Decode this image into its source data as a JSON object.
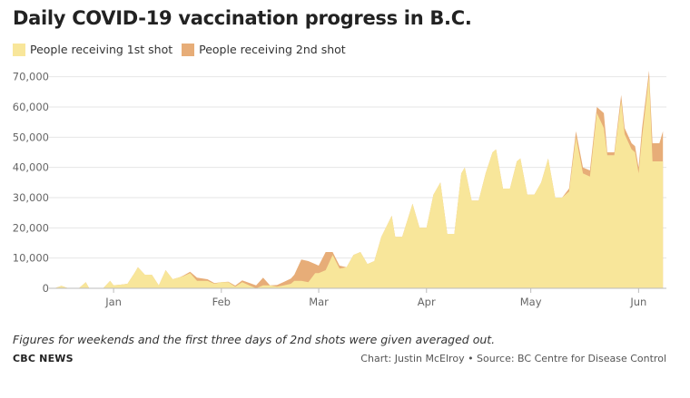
{
  "header": {
    "title": "Daily COVID-19 vaccination progress in B.C."
  },
  "legend": {
    "items": [
      {
        "label": "People receiving 1st shot",
        "color": "#f8e69a"
      },
      {
        "label": "People receiving 2nd shot",
        "color": "#e7ad78"
      }
    ]
  },
  "footer": {
    "note": "Figures for weekends and the first three days of 2nd shots were given averaged out.",
    "brand": "CBC NEWS",
    "credit": "Chart: Justin McElroy • Source: BC Centre for Disease Control"
  },
  "chart_data": {
    "type": "area",
    "stacked": true,
    "x_start": "2020-12-15",
    "x_end": "2021-06-01",
    "xticks": [
      {
        "label": "Jan",
        "date": "2021-01-01"
      },
      {
        "label": "Feb",
        "date": "2021-02-01"
      },
      {
        "label": "Mar",
        "date": "2021-03-01"
      },
      {
        "label": "Apr",
        "date": "2021-04-01"
      },
      {
        "label": "May",
        "date": "2021-05-01"
      },
      {
        "label": "Jun",
        "date": "2021-06-01"
      }
    ],
    "yticks": [
      "0",
      "10,000",
      "20,000",
      "30,000",
      "40,000",
      "50,000",
      "60,000",
      "70,000"
    ],
    "ylim": [
      0,
      72000
    ],
    "grid": true,
    "legend_position": "top-left",
    "series": [
      {
        "name": "People receiving 1st shot",
        "color": "#f8e69a",
        "points": [
          [
            "2020-12-15",
            0
          ],
          [
            "2020-12-17",
            800
          ],
          [
            "2020-12-19",
            0
          ],
          [
            "2020-12-22",
            0
          ],
          [
            "2020-12-24",
            2000
          ],
          [
            "2020-12-25",
            0
          ],
          [
            "2020-12-29",
            0
          ],
          [
            "2020-12-31",
            2500
          ],
          [
            "2021-01-01",
            1000
          ],
          [
            "2021-01-03",
            1200
          ],
          [
            "2021-01-05",
            1500
          ],
          [
            "2021-01-07",
            5000
          ],
          [
            "2021-01-08",
            7000
          ],
          [
            "2021-01-10",
            4500
          ],
          [
            "2021-01-12",
            4500
          ],
          [
            "2021-01-14",
            1000
          ],
          [
            "2021-01-16",
            6000
          ],
          [
            "2021-01-18",
            3000
          ],
          [
            "2021-01-21",
            4000
          ],
          [
            "2021-01-23",
            5000
          ],
          [
            "2021-01-25",
            2500
          ],
          [
            "2021-01-28",
            2500
          ],
          [
            "2021-01-30",
            1500
          ],
          [
            "2021-02-01",
            2000
          ],
          [
            "2021-02-03",
            2000
          ],
          [
            "2021-02-05",
            500
          ],
          [
            "2021-02-07",
            2000
          ],
          [
            "2021-02-09",
            1000
          ],
          [
            "2021-02-11",
            0
          ],
          [
            "2021-02-13",
            1000
          ],
          [
            "2021-02-15",
            1000
          ],
          [
            "2021-02-17",
            500
          ],
          [
            "2021-02-19",
            1000
          ],
          [
            "2021-02-21",
            1500
          ],
          [
            "2021-02-22",
            2500
          ],
          [
            "2021-02-24",
            2500
          ],
          [
            "2021-02-26",
            2000
          ],
          [
            "2021-02-28",
            5000
          ],
          [
            "2021-03-01",
            5000
          ],
          [
            "2021-03-03",
            6000
          ],
          [
            "2021-03-05",
            11000
          ],
          [
            "2021-03-07",
            6500
          ],
          [
            "2021-03-09",
            7000
          ],
          [
            "2021-03-11",
            11000
          ],
          [
            "2021-03-13",
            12000
          ],
          [
            "2021-03-15",
            8000
          ],
          [
            "2021-03-17",
            9000
          ],
          [
            "2021-03-19",
            17000
          ],
          [
            "2021-03-22",
            24000
          ],
          [
            "2021-03-23",
            17000
          ],
          [
            "2021-03-25",
            17000
          ],
          [
            "2021-03-28",
            28000
          ],
          [
            "2021-03-30",
            20000
          ],
          [
            "2021-04-01",
            20000
          ],
          [
            "2021-04-03",
            31000
          ],
          [
            "2021-04-05",
            35000
          ],
          [
            "2021-04-07",
            18000
          ],
          [
            "2021-04-09",
            18000
          ],
          [
            "2021-04-11",
            38000
          ],
          [
            "2021-04-12",
            40000
          ],
          [
            "2021-04-14",
            29000
          ],
          [
            "2021-04-16",
            29000
          ],
          [
            "2021-04-18",
            38000
          ],
          [
            "2021-04-20",
            45000
          ],
          [
            "2021-04-21",
            46000
          ],
          [
            "2021-04-23",
            33000
          ],
          [
            "2021-04-25",
            33000
          ],
          [
            "2021-04-27",
            42000
          ],
          [
            "2021-04-28",
            43000
          ],
          [
            "2021-04-30",
            31000
          ],
          [
            "2021-05-02",
            31000
          ],
          [
            "2021-05-04",
            35000
          ],
          [
            "2021-05-06",
            43000
          ],
          [
            "2021-05-08",
            30000
          ],
          [
            "2021-05-10",
            30000
          ],
          [
            "2021-05-12",
            32000
          ],
          [
            "2021-05-14",
            50000
          ],
          [
            "2021-05-16",
            38000
          ],
          [
            "2021-05-18",
            37000
          ],
          [
            "2021-05-20",
            58000
          ],
          [
            "2021-05-22",
            53000
          ],
          [
            "2021-05-23",
            44000
          ],
          [
            "2021-05-25",
            44000
          ],
          [
            "2021-05-27",
            62000
          ],
          [
            "2021-05-28",
            51000
          ],
          [
            "2021-05-30",
            46000
          ],
          [
            "2021-05-31",
            45000
          ],
          [
            "2021-06-01",
            38000
          ],
          [
            "2021-06-02",
            50000
          ],
          [
            "2021-06-04",
            70000
          ],
          [
            "2021-06-05",
            42000
          ],
          [
            "2021-06-07",
            42000
          ],
          [
            "2021-06-08",
            42000
          ]
        ]
      },
      {
        "name": "People receiving 2nd shot",
        "color": "#e7ad78",
        "points": [
          [
            "2020-12-15",
            0
          ],
          [
            "2021-01-20",
            0
          ],
          [
            "2021-01-23",
            500
          ],
          [
            "2021-01-25",
            1000
          ],
          [
            "2021-01-28",
            500
          ],
          [
            "2021-02-01",
            0
          ],
          [
            "2021-02-11",
            1000
          ],
          [
            "2021-02-13",
            2500
          ],
          [
            "2021-02-15",
            0
          ],
          [
            "2021-02-22",
            2000
          ],
          [
            "2021-02-24",
            7000
          ],
          [
            "2021-02-26",
            7000
          ],
          [
            "2021-02-28",
            3000
          ],
          [
            "2021-03-01",
            2500
          ],
          [
            "2021-03-03",
            6000
          ],
          [
            "2021-03-05",
            1000
          ],
          [
            "2021-03-07",
            1000
          ],
          [
            "2021-03-09",
            0
          ],
          [
            "2021-04-25",
            0
          ],
          [
            "2021-05-10",
            0
          ],
          [
            "2021-05-12",
            1000
          ],
          [
            "2021-05-14",
            2000
          ],
          [
            "2021-05-16",
            2000
          ],
          [
            "2021-05-18",
            2000
          ],
          [
            "2021-05-20",
            2000
          ],
          [
            "2021-05-22",
            5000
          ],
          [
            "2021-05-23",
            1000
          ],
          [
            "2021-05-25",
            1000
          ],
          [
            "2021-05-27",
            2000
          ],
          [
            "2021-05-28",
            2000
          ],
          [
            "2021-05-30",
            2000
          ],
          [
            "2021-05-31",
            2000
          ],
          [
            "2021-06-01",
            2000
          ],
          [
            "2021-06-02",
            3000
          ],
          [
            "2021-06-04",
            2000
          ],
          [
            "2021-06-05",
            6000
          ],
          [
            "2021-06-07",
            6000
          ],
          [
            "2021-06-08",
            10000
          ]
        ]
      }
    ]
  }
}
